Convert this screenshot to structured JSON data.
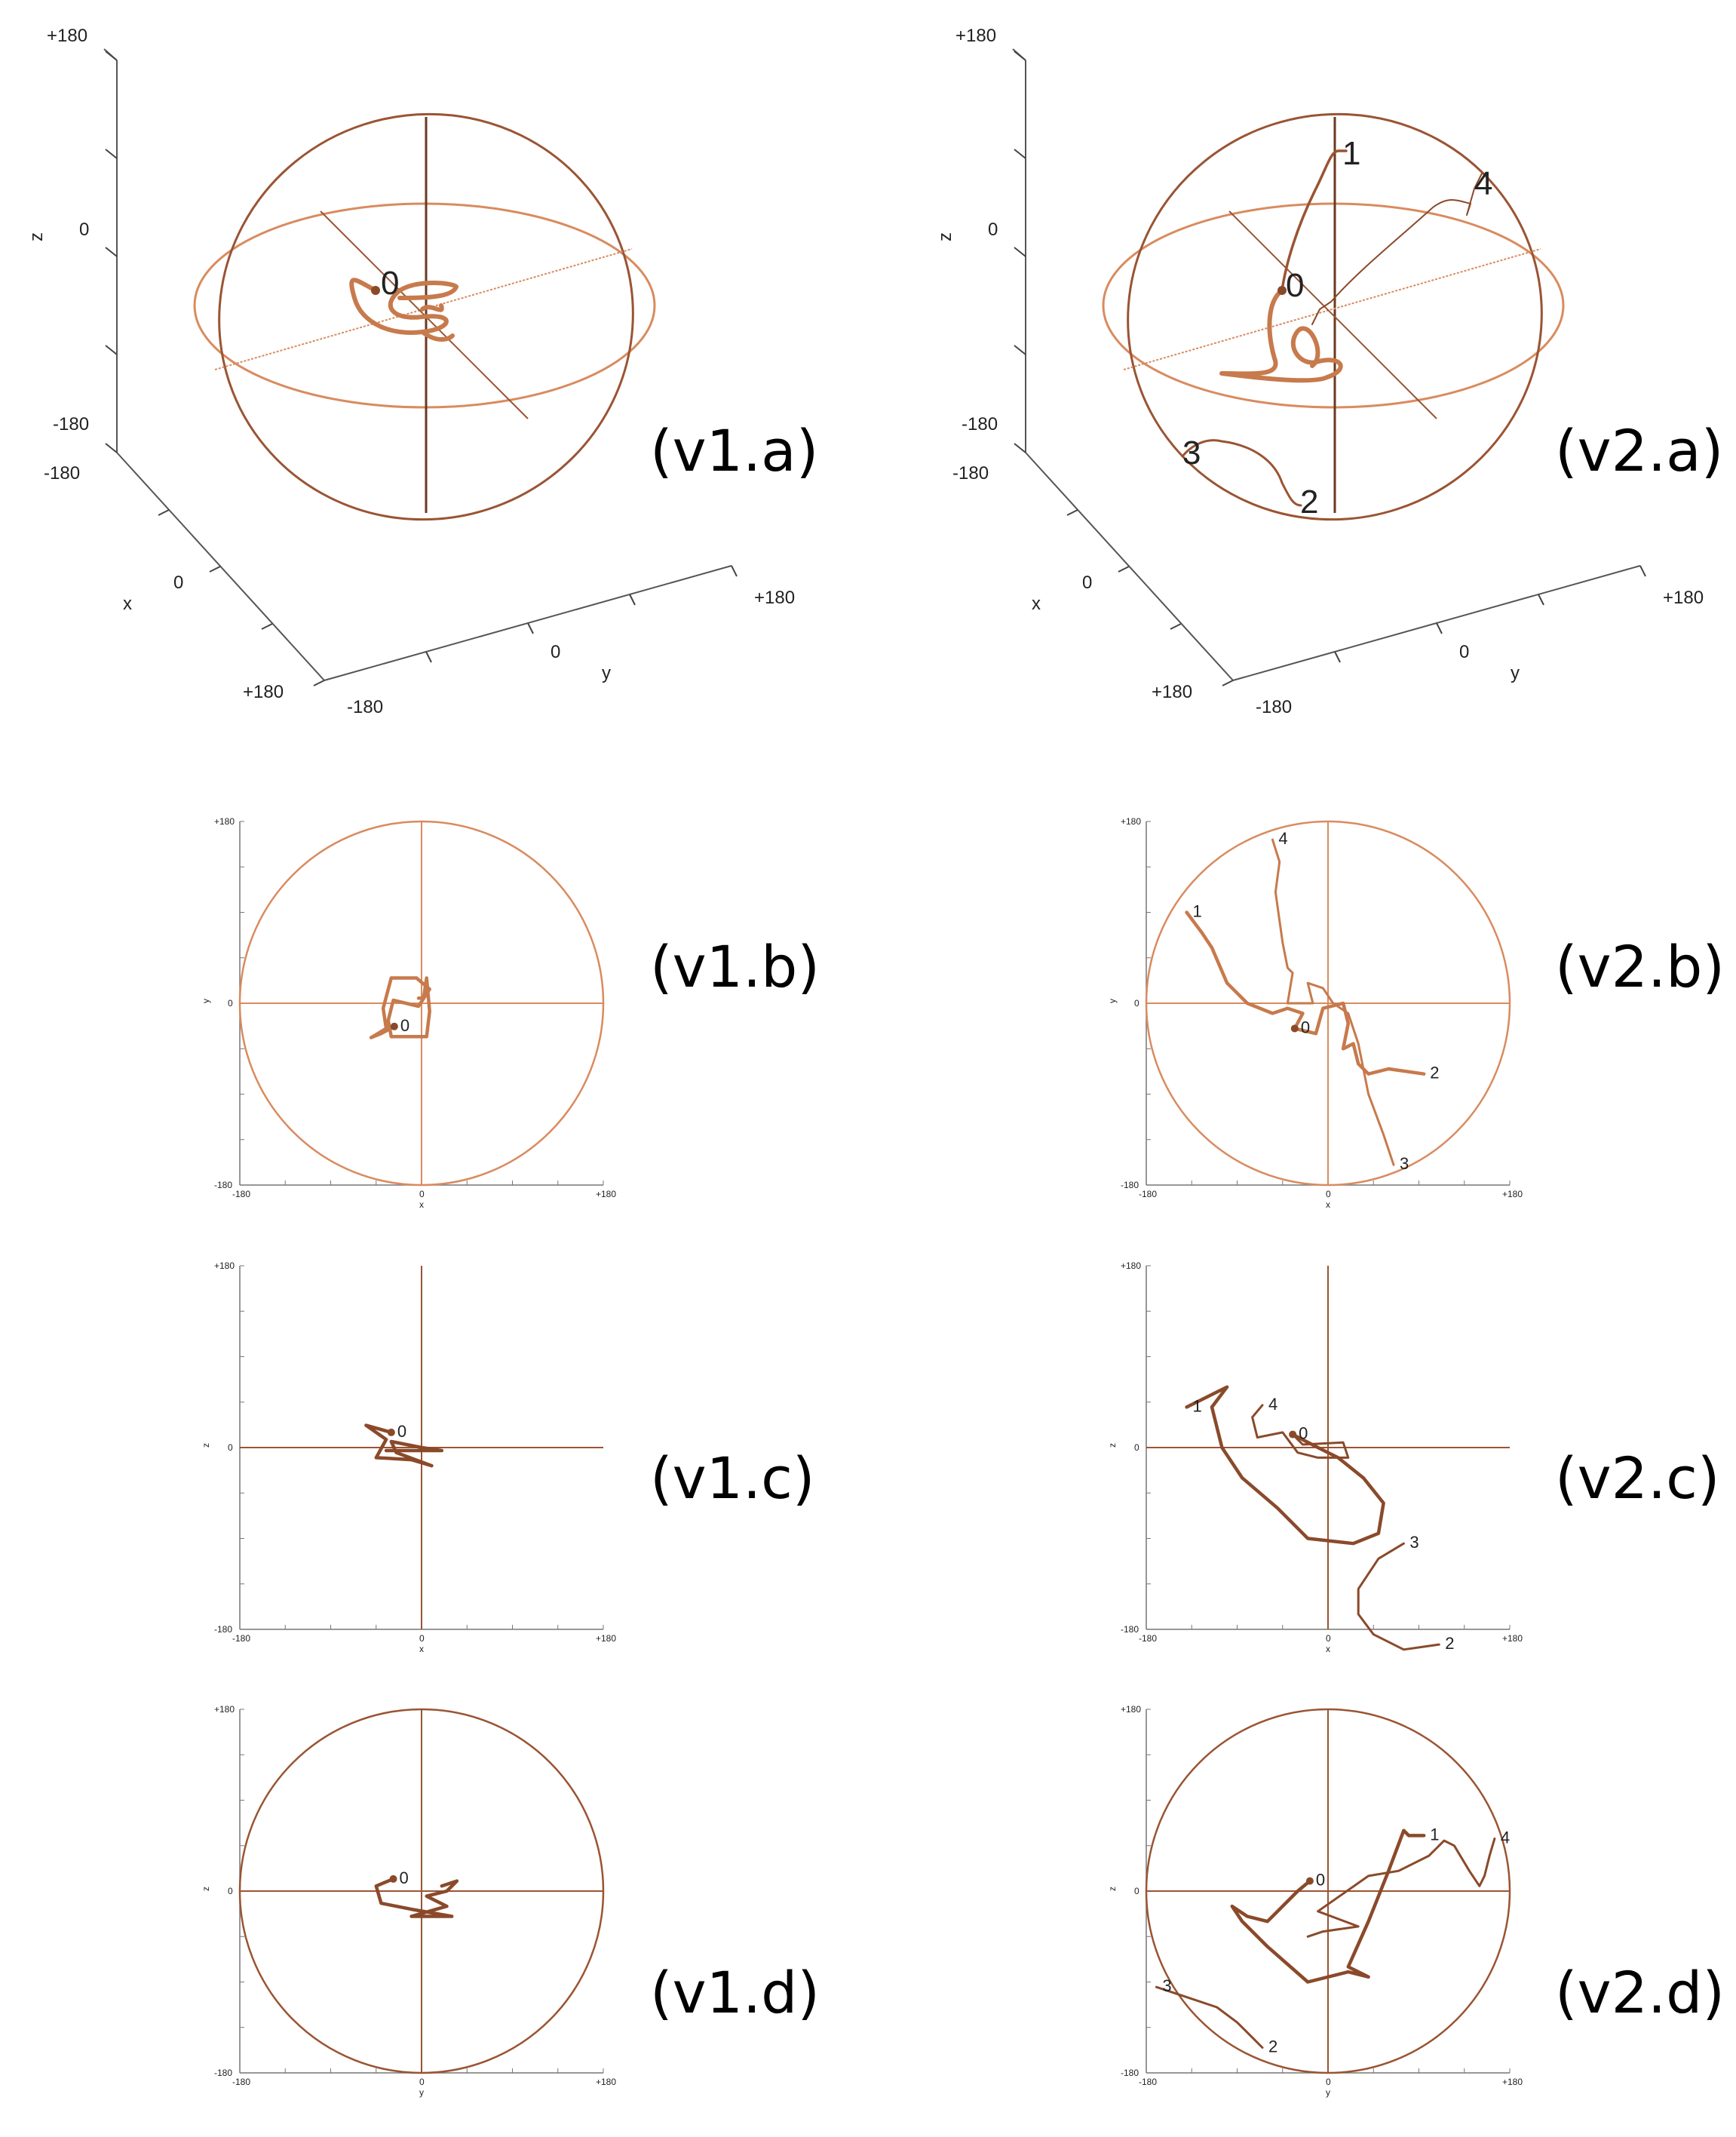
{
  "colors": {
    "sphere": "#d98b5f",
    "sphere_dark": "#9a5433",
    "trace": "#c77a4c",
    "trace_dark": "#8a4a2a",
    "axis_text": "#222222"
  },
  "axis_ticks": {
    "neg": "-180",
    "zero": "0",
    "pos": "+180"
  },
  "labels": {
    "v1a": "(v1.a)",
    "v2a": "(v2.a)",
    "v1b": "(v1.b)",
    "v2b": "(v2.b)",
    "v1c": "(v1.c)",
    "v2c": "(v2.c)",
    "v1d": "(v1.d)",
    "v2d": "(v2.d)"
  },
  "chart_data": [
    {
      "id": "v1.b",
      "type": "line",
      "view": "x-y projection",
      "xlabel": "x",
      "ylabel": "y",
      "xlim": [
        -180,
        180
      ],
      "ylim": [
        -180,
        180
      ],
      "ticks": [
        "-180",
        "0",
        "+180"
      ],
      "grid": false,
      "markers": [
        {
          "label": "0",
          "x": -27,
          "y": -23
        }
      ],
      "series": [
        {
          "values_xy": [
            [
              -27,
              -23
            ],
            [
              -40,
              -30
            ],
            [
              -50,
              -34
            ],
            [
              -35,
              -25
            ],
            [
              -38,
              -5
            ],
            [
              -30,
              25
            ],
            [
              -5,
              25
            ],
            [
              8,
              14
            ],
            [
              -3,
              -3
            ],
            [
              -28,
              3
            ],
            [
              -33,
              -17
            ],
            [
              -30,
              -33
            ],
            [
              5,
              -33
            ],
            [
              8,
              -8
            ],
            [
              5,
              25
            ],
            [
              2,
              5
            ],
            [
              -3,
              5
            ]
          ]
        }
      ]
    },
    {
      "id": "v2.b",
      "type": "line",
      "view": "x-y projection",
      "xlabel": "x",
      "ylabel": "y",
      "xlim": [
        -180,
        180
      ],
      "ylim": [
        -180,
        180
      ],
      "ticks": [
        "-180",
        "0",
        "+180"
      ],
      "grid": false,
      "markers": [
        {
          "label": "0",
          "x": -33,
          "y": -25
        },
        {
          "label": "1",
          "x": -140,
          "y": 90
        },
        {
          "label": "2",
          "x": 95,
          "y": -70
        },
        {
          "label": "3",
          "x": 65,
          "y": -160
        },
        {
          "label": "4",
          "x": -55,
          "y": 162
        }
      ],
      "series": [
        {
          "name": "",
          "values_xy": [
            [
              -140,
              90
            ],
            [
              -125,
              70
            ],
            [
              -115,
              55
            ],
            [
              -100,
              20
            ],
            [
              -80,
              0
            ],
            [
              -55,
              -10
            ],
            [
              -40,
              -5
            ],
            [
              -25,
              -10
            ],
            [
              -33,
              -25
            ],
            [
              -12,
              -30
            ],
            [
              -5,
              -5
            ],
            [
              15,
              0
            ],
            [
              20,
              -20
            ],
            [
              15,
              -45
            ],
            [
              25,
              -40
            ],
            [
              30,
              -60
            ],
            [
              40,
              -70
            ],
            [
              60,
              -65
            ],
            [
              95,
              -70
            ]
          ]
        },
        {
          "name": "",
          "values_xy": [
            [
              -55,
              162
            ],
            [
              -48,
              140
            ],
            [
              -52,
              110
            ],
            [
              -45,
              60
            ],
            [
              -40,
              35
            ],
            [
              -35,
              30
            ],
            [
              -40,
              0
            ],
            [
              -15,
              0
            ],
            [
              -20,
              20
            ],
            [
              -5,
              15
            ],
            [
              5,
              0
            ],
            [
              20,
              -10
            ],
            [
              30,
              -40
            ],
            [
              40,
              -90
            ],
            [
              55,
              -130
            ],
            [
              65,
              -160
            ]
          ]
        }
      ]
    },
    {
      "id": "v1.c",
      "type": "line",
      "view": "x-z projection",
      "xlabel": "x",
      "ylabel": "z",
      "xlim": [
        -180,
        180
      ],
      "ylim": [
        -180,
        180
      ],
      "ticks": [
        "-180",
        "0",
        "+180"
      ],
      "grid": false,
      "markers": [
        {
          "label": "0",
          "x": -30,
          "y": 15
        }
      ],
      "series": [
        {
          "values_xy": [
            [
              -30,
              15
            ],
            [
              -55,
              22
            ],
            [
              -35,
              8
            ],
            [
              -45,
              -10
            ],
            [
              -10,
              -12
            ],
            [
              10,
              -18
            ],
            [
              -25,
              -5
            ],
            [
              -30,
              6
            ],
            [
              0,
              0
            ],
            [
              20,
              -3
            ],
            [
              -20,
              -3
            ],
            [
              -35,
              -3
            ]
          ]
        }
      ]
    },
    {
      "id": "v2.c",
      "type": "line",
      "view": "x-z projection",
      "xlabel": "x",
      "ylabel": "z",
      "xlim": [
        -180,
        180
      ],
      "ylim": [
        -180,
        180
      ],
      "ticks": [
        "-180",
        "0",
        "+180"
      ],
      "grid": false,
      "markers": [
        {
          "label": "0",
          "x": -35,
          "y": 13
        },
        {
          "label": "1",
          "x": -140,
          "y": 40
        },
        {
          "label": "2",
          "x": 110,
          "y": -195
        },
        {
          "label": "3",
          "x": 75,
          "y": -95
        },
        {
          "label": "4",
          "x": -65,
          "y": 42
        }
      ],
      "series": [
        {
          "name": "",
          "values_xy": [
            [
              -140,
              40
            ],
            [
              -110,
              55
            ],
            [
              -100,
              60
            ],
            [
              -115,
              40
            ],
            [
              -105,
              0
            ],
            [
              -85,
              -30
            ],
            [
              -50,
              -60
            ],
            [
              -20,
              -90
            ],
            [
              25,
              -95
            ],
            [
              50,
              -85
            ],
            [
              55,
              -55
            ],
            [
              35,
              -30
            ],
            [
              10,
              -10
            ],
            [
              -10,
              0
            ],
            [
              -35,
              13
            ]
          ]
        },
        {
          "name": "",
          "values_xy": [
            [
              110,
              -195
            ],
            [
              75,
              -200
            ],
            [
              45,
              -185
            ],
            [
              30,
              -165
            ],
            [
              30,
              -140
            ],
            [
              50,
              -110
            ],
            [
              75,
              -95
            ]
          ]
        },
        {
          "name": "",
          "values_xy": [
            [
              -65,
              42
            ],
            [
              -75,
              30
            ],
            [
              -70,
              10
            ],
            [
              -45,
              15
            ],
            [
              -30,
              -5
            ],
            [
              -10,
              -10
            ],
            [
              20,
              -10
            ],
            [
              15,
              5
            ],
            [
              -25,
              3
            ],
            [
              -35,
              13
            ]
          ]
        }
      ]
    },
    {
      "id": "v1.d",
      "type": "line",
      "view": "y-z projection",
      "xlabel": "y",
      "ylabel": "z",
      "xlim": [
        -180,
        180
      ],
      "ylim": [
        -180,
        180
      ],
      "ticks": [
        "-180",
        "0",
        "+180"
      ],
      "grid": false,
      "markers": [
        {
          "label": "0",
          "x": -28,
          "y": 12
        }
      ],
      "series": [
        {
          "values_xy": [
            [
              -28,
              12
            ],
            [
              -45,
              5
            ],
            [
              -40,
              -12
            ],
            [
              -10,
              -18
            ],
            [
              30,
              -25
            ],
            [
              -10,
              -25
            ],
            [
              25,
              -15
            ],
            [
              5,
              -5
            ],
            [
              25,
              0
            ],
            [
              35,
              10
            ],
            [
              20,
              5
            ]
          ]
        }
      ]
    },
    {
      "id": "v2.d",
      "type": "line",
      "view": "y-z projection",
      "xlabel": "y",
      "ylabel": "z",
      "xlim": [
        -180,
        180
      ],
      "ylim": [
        -180,
        180
      ],
      "ticks": [
        "-180",
        "0",
        "+180"
      ],
      "grid": false,
      "markers": [
        {
          "label": "0",
          "x": -18,
          "y": 10
        },
        {
          "label": "1",
          "x": 95,
          "y": 55
        },
        {
          "label": "2",
          "x": -65,
          "y": -155
        },
        {
          "label": "3",
          "x": -170,
          "y": -95
        },
        {
          "label": "4",
          "x": 165,
          "y": 52
        }
      ],
      "series": [
        {
          "name": "",
          "values_xy": [
            [
              -18,
              10
            ],
            [
              -30,
              0
            ],
            [
              -45,
              -15
            ],
            [
              -60,
              -30
            ],
            [
              -80,
              -25
            ],
            [
              -95,
              -15
            ],
            [
              -85,
              -30
            ],
            [
              -60,
              -55
            ],
            [
              -20,
              -90
            ],
            [
              20,
              -80
            ],
            [
              40,
              -85
            ],
            [
              20,
              -75
            ],
            [
              40,
              -30
            ],
            [
              60,
              20
            ],
            [
              75,
              60
            ],
            [
              80,
              55
            ],
            [
              95,
              55
            ]
          ]
        },
        {
          "name": "",
          "values_xy": [
            [
              165,
              52
            ],
            [
              160,
              35
            ],
            [
              155,
              15
            ],
            [
              150,
              5
            ],
            [
              140,
              20
            ],
            [
              125,
              45
            ],
            [
              115,
              50
            ],
            [
              100,
              35
            ],
            [
              70,
              20
            ],
            [
              40,
              15
            ],
            [
              -10,
              -20
            ],
            [
              30,
              -35
            ],
            [
              -5,
              -40
            ],
            [
              -20,
              -45
            ]
          ]
        },
        {
          "name": "",
          "values_xy": [
            [
              -170,
              -95
            ],
            [
              -140,
              -105
            ],
            [
              -110,
              -115
            ],
            [
              -90,
              -130
            ],
            [
              -75,
              -145
            ],
            [
              -65,
              -155
            ]
          ]
        }
      ]
    }
  ]
}
